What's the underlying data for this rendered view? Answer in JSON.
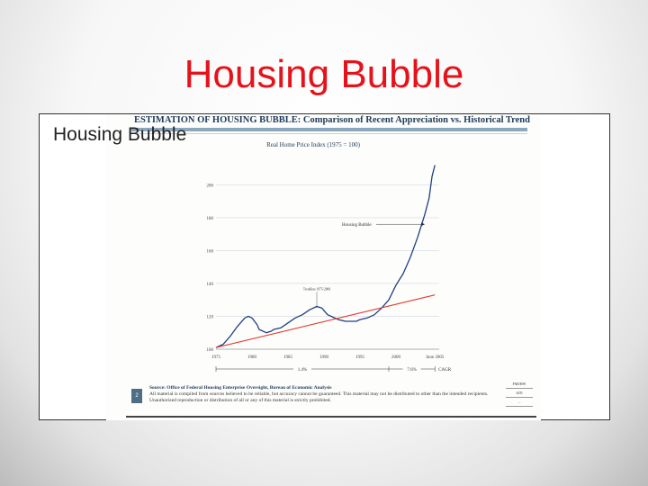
{
  "slide": {
    "title": "Housing Bubble",
    "caption": "Housing Bubble"
  },
  "figure": {
    "title": "ESTIMATION OF HOUSING BUBBLE: Comparison of Recent Appreciation vs. Historical Trends",
    "source_label": "Source: Office of Federal Housing Enterprise Oversight, Bureau of Economic Analysis",
    "disclaimer": "All material is compiled from sources believed to be reliable, but accuracy cannot be guaranteed. This material may not be distributed to other than the intended recipients. Unauthorized reproduction or distribution of all or any of this material is strictly prohibited.",
    "footer_box": "2",
    "footer_right": [
      "FMI/HW",
      "4/05",
      "..."
    ]
  },
  "chart_data": {
    "type": "line",
    "title": "Real Home Price Index (1975 = 100)",
    "xlabel": "",
    "ylabel": "",
    "xlim": [
      1975,
      2006
    ],
    "ylim": [
      100,
      215
    ],
    "x_ticks": [
      "1975",
      "1980",
      "1985",
      "1990",
      "1995",
      "2000",
      "June 2005"
    ],
    "x_tick_values": [
      1975,
      1980,
      1985,
      1990,
      1995,
      2000,
      2005.4
    ],
    "y_ticks": [
      100,
      120,
      140,
      160,
      180,
      200
    ],
    "grid": true,
    "series": [
      {
        "name": "",
        "color": "#1f3f85",
        "x": [
          1975,
          1976,
          1977,
          1978,
          1979,
          1979.5,
          1980,
          1980.7,
          1981,
          1982,
          1982.7,
          1983,
          1984,
          1985,
          1986,
          1987,
          1988,
          1989,
          1989.7,
          1990.5,
          1991,
          1992,
          1993,
          1994,
          1994.5,
          1995,
          1996,
          1997,
          1998,
          1999,
          2000,
          2001,
          2002,
          2003,
          2004,
          2004.6,
          2005,
          2005.4
        ],
        "y": [
          101,
          103,
          108,
          114,
          119,
          120,
          119,
          115,
          112,
          110,
          111,
          112,
          113,
          116,
          119,
          121,
          124,
          126,
          125,
          121,
          120,
          118,
          117,
          117,
          117,
          118,
          119,
          121,
          125,
          130,
          139,
          146,
          156,
          168,
          182,
          192,
          205,
          212
        ]
      },
      {
        "name": "",
        "color": "#e43a2f",
        "x": [
          1975,
          2005.4
        ],
        "y": [
          101,
          133
        ]
      }
    ],
    "annotations": [
      {
        "text": "Housing Bubble",
        "x": 1997,
        "y": 176
      },
      {
        "text": "Trendline 1975-2000",
        "x": 1989,
        "y": 136
      }
    ],
    "brackets": [
      {
        "label": "1.4%",
        "from": 1975,
        "to": 1999
      },
      {
        "label": "7.6%",
        "from": 1999,
        "to": 2005.4
      },
      {
        "label": "CAGR",
        "from": 2005.4,
        "to": 2005.4
      }
    ]
  }
}
